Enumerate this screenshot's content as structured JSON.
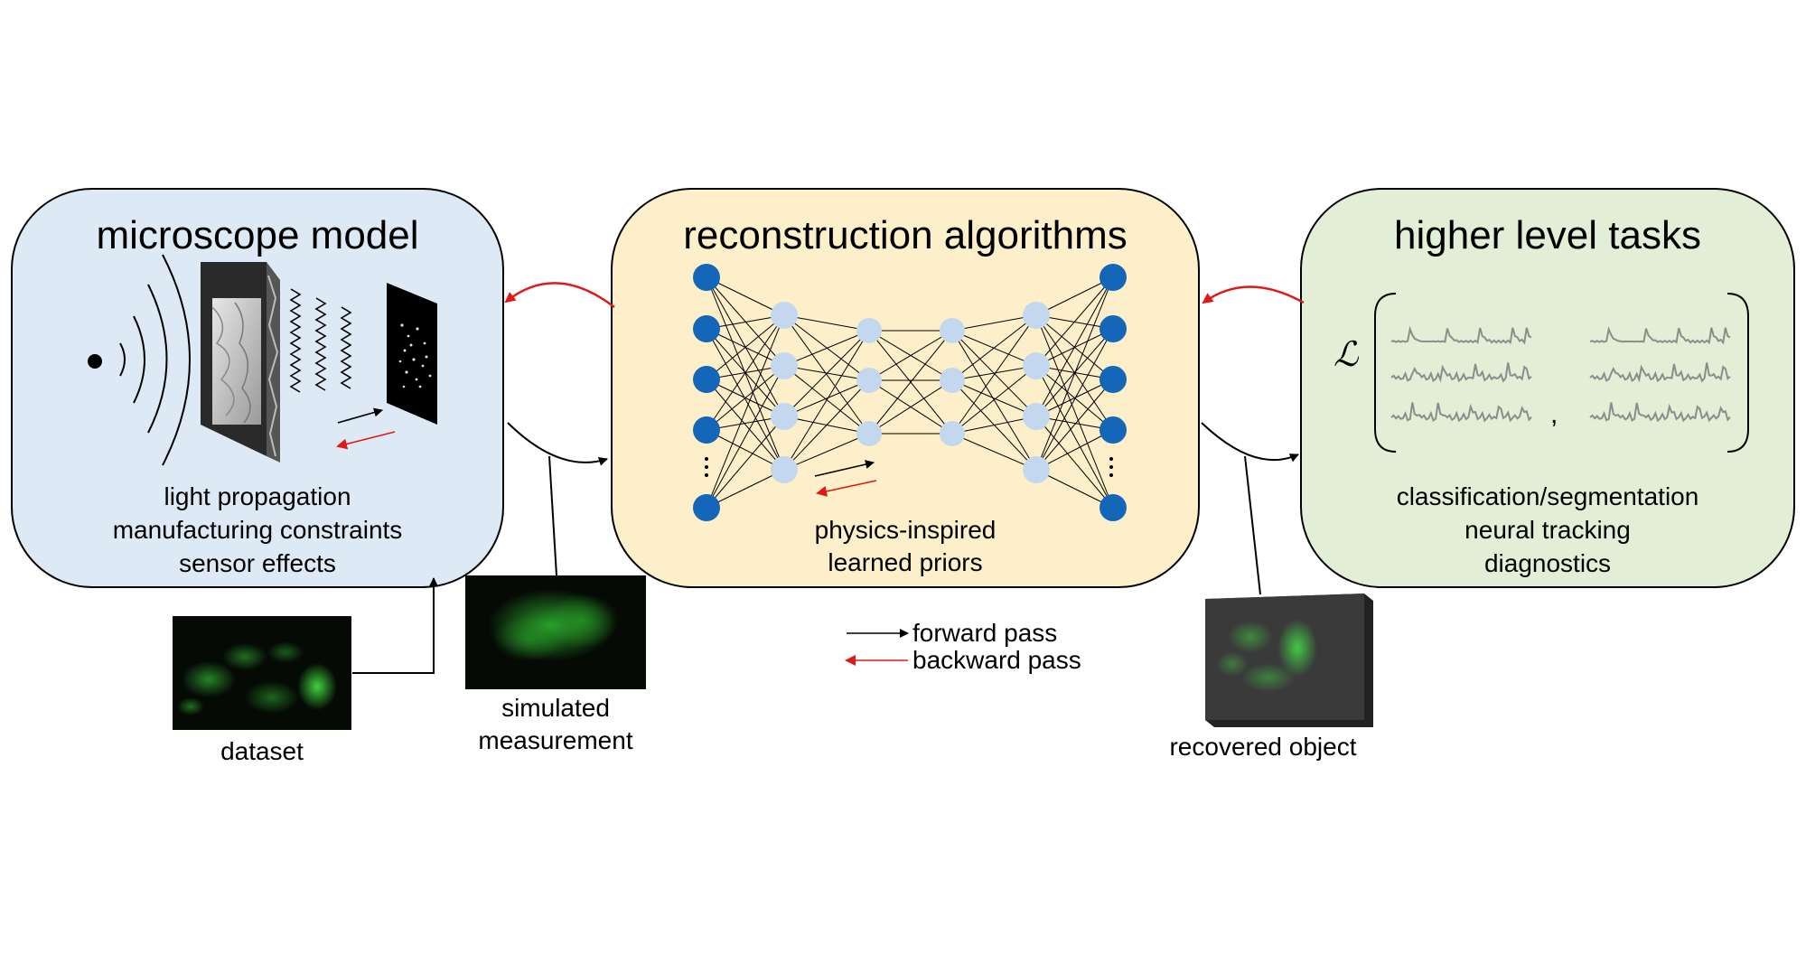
{
  "panels": {
    "microscope": {
      "title": "microscope model",
      "lines": [
        "light propagation",
        "manufacturing constraints",
        "sensor effects"
      ],
      "fill": "#dde9f5"
    },
    "reconstruction": {
      "title": "reconstruction algorithms",
      "lines": [
        "physics-inspired",
        "learned priors"
      ],
      "fill": "#fcefc9"
    },
    "tasks": {
      "title": "higher level tasks",
      "lines": [
        "classification/segmentation",
        "neural tracking",
        "diagnostics"
      ],
      "fill": "#e2efd6",
      "loss_symbol": "ℒ",
      "separator": ","
    }
  },
  "images": {
    "dataset": "dataset",
    "simulated": [
      "simulated",
      "measurement"
    ],
    "recovered": "recovered object"
  },
  "legend": {
    "forward": "forward pass",
    "backward": "backward pass"
  },
  "colors": {
    "forward_arrow": "#000000",
    "backward_arrow": "#e01818",
    "node_dark": "#1467b8",
    "node_light": "#c3d8ee",
    "trace": "#8c8c8c"
  },
  "icons": [
    "point-source-icon",
    "wavefront-icon",
    "phase-mask-icon",
    "sensor-icon",
    "neural-network-icon"
  ]
}
